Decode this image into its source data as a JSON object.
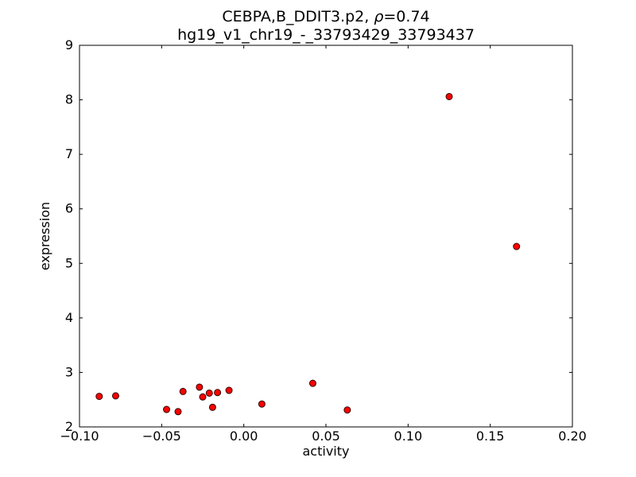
{
  "figure": {
    "title_line1": {
      "prefix": "CEBPA,B_DDIT3.p2, ",
      "rho": "ρ",
      "suffix": "=0.74"
    },
    "title_line2": "hg19_v1_chr19_-_33793429_33793437"
  },
  "chart_data": {
    "type": "scatter",
    "title": "CEBPA,B_DDIT3.p2, ρ=0.74",
    "subtitle": "hg19_v1_chr19_-_33793429_33793437",
    "xlabel": "activity",
    "ylabel": "expression",
    "xlim": [
      -0.1,
      0.2
    ],
    "ylim": [
      2,
      9
    ],
    "grid": false,
    "legend": "none",
    "xticks": [
      {
        "v": -0.1,
        "label": "−0.10"
      },
      {
        "v": -0.05,
        "label": "−0.05"
      },
      {
        "v": 0.0,
        "label": "0.00"
      },
      {
        "v": 0.05,
        "label": "0.05"
      },
      {
        "v": 0.1,
        "label": "0.10"
      },
      {
        "v": 0.15,
        "label": "0.15"
      },
      {
        "v": 0.2,
        "label": "0.20"
      }
    ],
    "yticks": [
      {
        "v": 2,
        "label": "2"
      },
      {
        "v": 3,
        "label": "3"
      },
      {
        "v": 4,
        "label": "4"
      },
      {
        "v": 5,
        "label": "5"
      },
      {
        "v": 6,
        "label": "6"
      },
      {
        "v": 7,
        "label": "7"
      },
      {
        "v": 8,
        "label": "8"
      },
      {
        "v": 9,
        "label": "9"
      }
    ],
    "marker": {
      "shape": "circle",
      "fill": "#ff0000",
      "edge": "#330000",
      "radius": 4
    },
    "points": [
      [
        -0.088,
        2.56
      ],
      [
        -0.078,
        2.57
      ],
      [
        -0.047,
        2.32
      ],
      [
        -0.04,
        2.28
      ],
      [
        -0.037,
        2.65
      ],
      [
        -0.027,
        2.73
      ],
      [
        -0.025,
        2.55
      ],
      [
        -0.021,
        2.62
      ],
      [
        -0.019,
        2.36
      ],
      [
        -0.016,
        2.63
      ],
      [
        -0.009,
        2.67
      ],
      [
        0.011,
        2.42
      ],
      [
        0.042,
        2.8
      ],
      [
        0.063,
        2.31
      ],
      [
        0.125,
        8.06
      ],
      [
        0.166,
        5.31
      ]
    ]
  }
}
